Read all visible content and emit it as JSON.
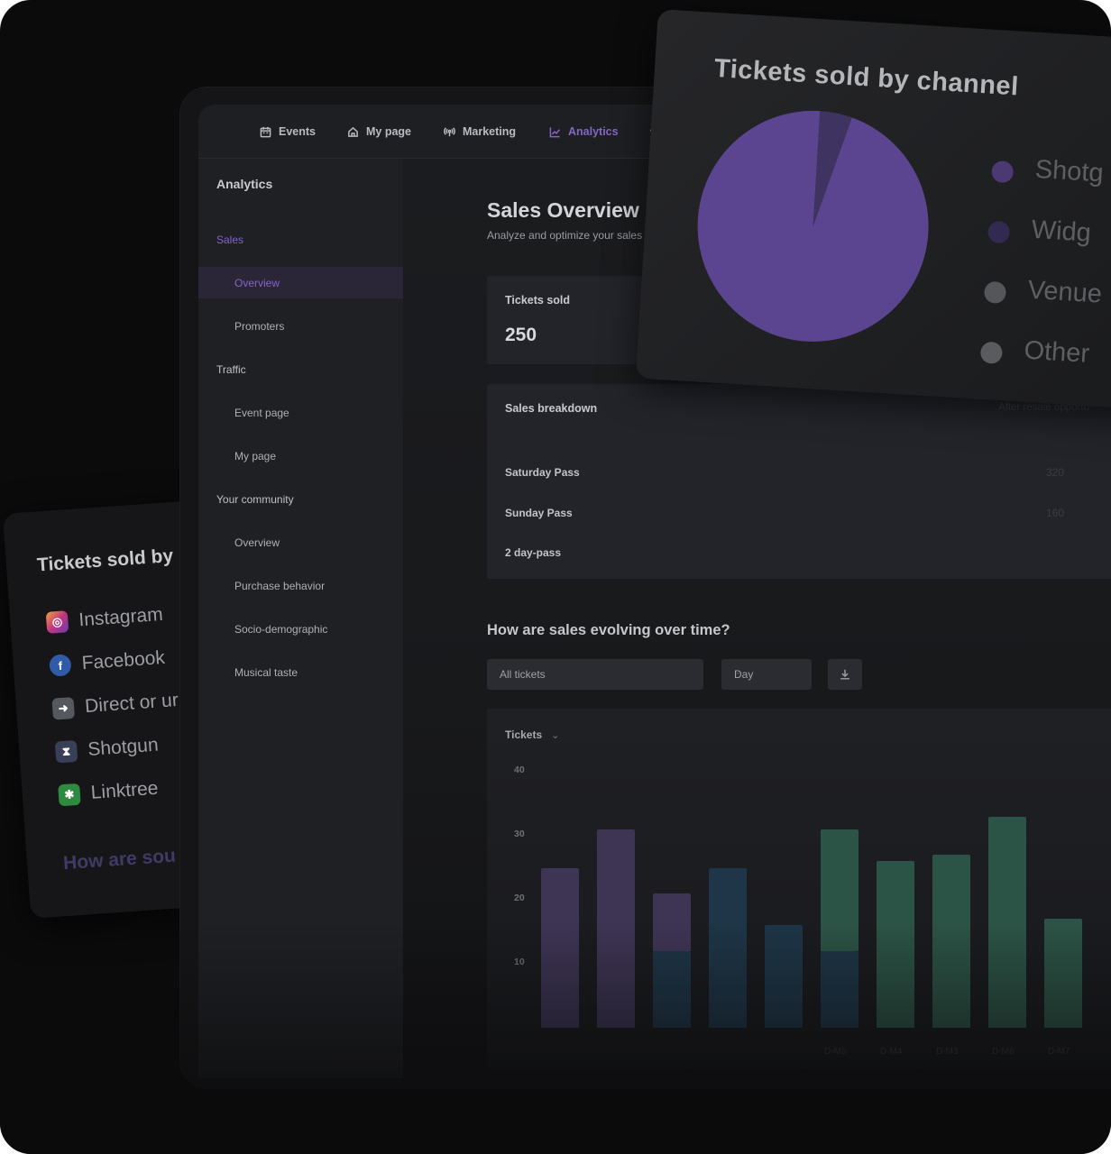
{
  "nav": {
    "items": [
      {
        "label": "Events",
        "icon": "calendar-icon"
      },
      {
        "label": "My page",
        "icon": "home-icon"
      },
      {
        "label": "Marketing",
        "icon": "broadcast-icon"
      },
      {
        "label": "Analytics",
        "icon": "chart-line-icon",
        "active": true
      },
      {
        "label": "",
        "icon": "bank-icon"
      }
    ]
  },
  "sidebar": {
    "title": "Analytics",
    "sales_label": "Sales",
    "sales_items": [
      "Overview",
      "Promoters"
    ],
    "traffic_label": "Traffic",
    "traffic_items": [
      "Event page",
      "My page"
    ],
    "community_label": "Your community",
    "community_items": [
      "Overview",
      "Purchase behavior",
      "Socio-demographic",
      "Musical taste"
    ]
  },
  "main": {
    "title": "Sales Overview",
    "subtitle": "Analyze and optimize your sales",
    "tickets_sold_label": "Tickets sold",
    "tickets_sold_value": "250",
    "breakdown": {
      "label": "Sales breakdown",
      "right_label": "After resale opportu",
      "rows": [
        {
          "name": "Saturday Pass",
          "value": "320"
        },
        {
          "name": "Sunday Pass",
          "value": "160"
        },
        {
          "name": "2 day-pass",
          "value": ""
        }
      ]
    },
    "evolution_title": "How are sales evolving over time?",
    "filter_tickets": "All tickets",
    "filter_period": "Day",
    "chart_metric": "Tickets"
  },
  "chart_data": {
    "type": "bar",
    "ylabel": "Tickets",
    "yticks": [
      10,
      20,
      30,
      40
    ],
    "ylim": [
      0,
      40
    ],
    "x": [
      "",
      "",
      "",
      "",
      "",
      "D-M5",
      "D-M4",
      "D-M3",
      "D-M6",
      "D-M7"
    ],
    "stacks": [
      [
        {
          "color": "#3e3555",
          "v": 25
        }
      ],
      [
        {
          "color": "#3e3555",
          "v": 31
        }
      ],
      [
        {
          "color": "#1e3648",
          "v": 12
        },
        {
          "color": "#3e3555",
          "v": 9
        }
      ],
      [
        {
          "color": "#1e3648",
          "v": 25
        }
      ],
      [
        {
          "color": "#1e3648",
          "v": 16
        }
      ],
      [
        {
          "color": "#1e3648",
          "v": 12
        },
        {
          "color": "#2c5446",
          "v": 19
        }
      ],
      [
        {
          "color": "#2c5446",
          "v": 26
        }
      ],
      [
        {
          "color": "#2c5446",
          "v": 27
        }
      ],
      [
        {
          "color": "#2c5446",
          "v": 33
        }
      ],
      [
        {
          "color": "#2c5446",
          "v": 17
        }
      ]
    ]
  },
  "pie_panel": {
    "title": "Tickets sold by channel",
    "legend": [
      {
        "label": "Shotg",
        "color": "#4b3a72"
      },
      {
        "label": "Widg",
        "color": "#332a52"
      },
      {
        "label": "Venue",
        "color": "#555659"
      },
      {
        "label": "Other",
        "color": "#5a5b5e"
      }
    ],
    "slices": [
      {
        "share": 0.955,
        "color": "#5c4590"
      },
      {
        "share": 0.045,
        "color": "#3f3361"
      }
    ]
  },
  "channel_panel": {
    "title": "Tickets sold by",
    "items": [
      {
        "label": "Instagram",
        "icon": "instagram-icon",
        "color": "#b4458a"
      },
      {
        "label": "Facebook",
        "icon": "facebook-icon",
        "color": "#2f5ba8"
      },
      {
        "label": "Direct or ur",
        "icon": "arrow-right-icon",
        "color": "#55585f"
      },
      {
        "label": "Shotgun",
        "icon": "hourglass-icon",
        "color": "#3a3f58"
      },
      {
        "label": "Linktree",
        "icon": "linktree-icon",
        "color": "#2d8a3f"
      }
    ],
    "footer": "How are sou"
  },
  "colors": {
    "accent": "#8465c4",
    "background": "#0b0b0c"
  }
}
